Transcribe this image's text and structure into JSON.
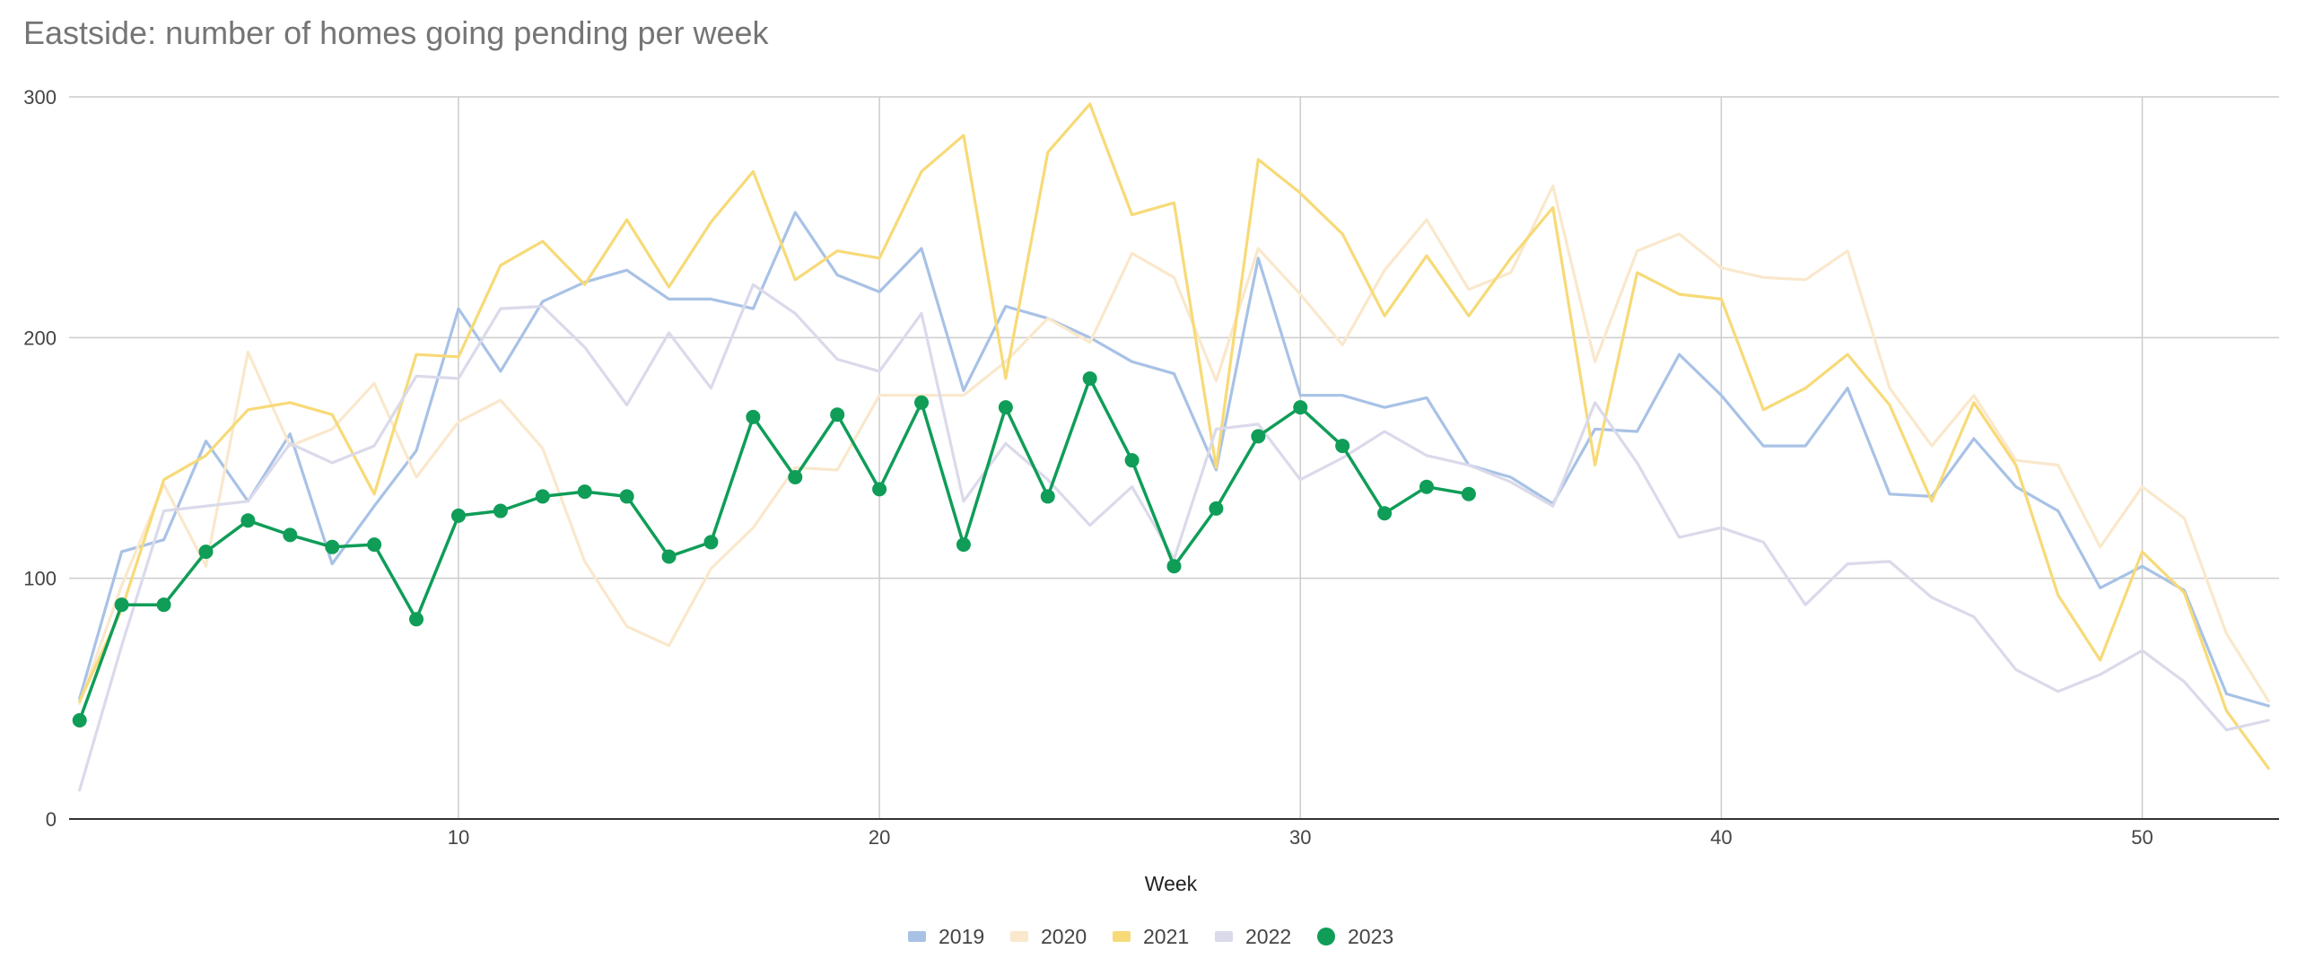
{
  "chart_data": {
    "type": "line",
    "title": "Eastside: number of homes going pending per week",
    "xlabel": "Week",
    "ylabel": "",
    "xlim": [
      0.75,
      53.25
    ],
    "ylim": [
      0,
      300
    ],
    "x_ticks": [
      10,
      20,
      30,
      40,
      50
    ],
    "y_ticks": [
      0,
      100,
      200,
      300
    ],
    "grid": true,
    "legend_position": "bottom",
    "series": [
      {
        "name": "2019",
        "color": "#a8c2e6",
        "marker": false,
        "x": [
          1,
          2,
          3,
          4,
          5,
          6,
          7,
          8,
          9,
          10,
          11,
          12,
          13,
          14,
          15,
          16,
          17,
          18,
          19,
          20,
          21,
          22,
          23,
          24,
          25,
          26,
          27,
          28,
          29,
          30,
          31,
          32,
          33,
          34,
          35,
          36,
          37,
          38,
          39,
          40,
          41,
          42,
          43,
          44,
          45,
          46,
          47,
          48,
          49,
          50,
          51,
          52,
          53
        ],
        "values": [
          50,
          111,
          116,
          157,
          132,
          160,
          106,
          130,
          153,
          212,
          186,
          215,
          223,
          228,
          216,
          216,
          212,
          252,
          226,
          219,
          237,
          178,
          213,
          208,
          200,
          190,
          185,
          145,
          233,
          176,
          176,
          171,
          175,
          147,
          142,
          131,
          162,
          161,
          193,
          176,
          155,
          155,
          179,
          135,
          134,
          158,
          138,
          128,
          96,
          105,
          95,
          52,
          47
        ]
      },
      {
        "name": "2020",
        "color": "#fae8cc",
        "marker": false,
        "x": [
          1,
          2,
          3,
          4,
          5,
          6,
          7,
          8,
          9,
          10,
          11,
          12,
          13,
          14,
          15,
          16,
          17,
          18,
          19,
          20,
          21,
          22,
          23,
          24,
          25,
          26,
          27,
          28,
          29,
          30,
          31,
          32,
          33,
          34,
          35,
          36,
          37,
          38,
          39,
          40,
          41,
          42,
          43,
          44,
          45,
          46,
          47,
          48,
          49,
          50,
          51,
          52,
          53
        ],
        "values": [
          48,
          97,
          139,
          105,
          194,
          155,
          162,
          181,
          142,
          165,
          174,
          154,
          107,
          80,
          72,
          104,
          121,
          146,
          145,
          176,
          176,
          176,
          190,
          208,
          198,
          235,
          225,
          182,
          237,
          218,
          197,
          228,
          249,
          220,
          227,
          263,
          190,
          236,
          243,
          229,
          225,
          224,
          236,
          179,
          155,
          176,
          149,
          147,
          113,
          138,
          125,
          77,
          49
        ]
      },
      {
        "name": "2021",
        "color": "#f7da78",
        "marker": false,
        "x": [
          1,
          2,
          3,
          4,
          5,
          6,
          7,
          8,
          9,
          10,
          11,
          12,
          13,
          14,
          15,
          16,
          17,
          18,
          19,
          20,
          21,
          22,
          23,
          24,
          25,
          26,
          27,
          28,
          29,
          30,
          31,
          32,
          33,
          34,
          35,
          36,
          37,
          38,
          39,
          40,
          41,
          42,
          43,
          44,
          45,
          46,
          47,
          48,
          49,
          50,
          51,
          52,
          53
        ],
        "values": [
          49,
          87,
          141,
          151,
          170,
          173,
          168,
          135,
          193,
          192,
          230,
          240,
          222,
          249,
          221,
          248,
          269,
          224,
          236,
          233,
          269,
          284,
          183,
          277,
          297,
          251,
          256,
          146,
          274,
          260,
          243,
          209,
          234,
          209,
          233,
          254,
          147,
          227,
          218,
          216,
          170,
          179,
          193,
          172,
          132,
          173,
          147,
          93,
          66,
          111,
          94,
          45,
          21
        ]
      },
      {
        "name": "2022",
        "color": "#dadaeb",
        "marker": false,
        "x": [
          1,
          2,
          3,
          4,
          5,
          6,
          7,
          8,
          9,
          10,
          11,
          12,
          13,
          14,
          15,
          16,
          17,
          18,
          19,
          20,
          21,
          22,
          23,
          24,
          25,
          26,
          27,
          28,
          29,
          30,
          31,
          32,
          33,
          34,
          35,
          36,
          37,
          38,
          39,
          40,
          41,
          42,
          43,
          44,
          45,
          46,
          47,
          48,
          49,
          50,
          51,
          52,
          53
        ],
        "values": [
          12,
          72,
          128,
          130,
          132,
          156,
          148,
          155,
          184,
          183,
          212,
          213,
          196,
          172,
          202,
          179,
          222,
          210,
          191,
          186,
          210,
          132,
          156,
          141,
          122,
          138,
          108,
          162,
          164,
          141,
          150,
          161,
          151,
          147,
          140,
          130,
          173,
          148,
          117,
          121,
          115,
          89,
          106,
          107,
          92,
          84,
          62,
          53,
          60,
          70,
          57,
          37,
          41
        ]
      },
      {
        "name": "2023",
        "color": "#0f9d58",
        "marker": true,
        "x": [
          1,
          2,
          3,
          4,
          5,
          6,
          7,
          8,
          9,
          10,
          11,
          12,
          13,
          14,
          15,
          16,
          17,
          18,
          19,
          20,
          21,
          22,
          23,
          24,
          25,
          26,
          27,
          28,
          29,
          30,
          31,
          32,
          33,
          34
        ],
        "values": [
          41,
          89,
          89,
          111,
          124,
          118,
          113,
          114,
          83,
          126,
          128,
          134,
          136,
          134,
          109,
          115,
          167,
          142,
          168,
          137,
          173,
          114,
          171,
          134,
          183,
          149,
          105,
          129,
          159,
          171,
          155,
          127,
          138,
          135
        ]
      }
    ]
  }
}
